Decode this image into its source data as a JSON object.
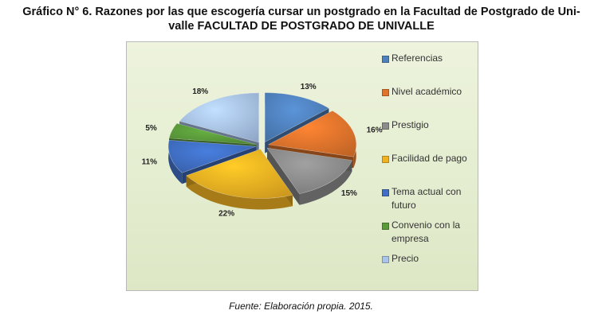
{
  "figure": {
    "title_line1": "Gráfico N° 6. Razones por las que escogería cursar un postgrado en la Facultad de Postgrado de Uni-",
    "title_line2": "valle FACULTAD DE POSTGRADO DE UNIVALLE",
    "source": "Fuente: Elaboración propia. 2015."
  },
  "chart_data": {
    "type": "pie",
    "title": "",
    "labels": [
      "Referencias",
      "Nivel académico",
      "Prestigio",
      "Facilidad de pago",
      "Tema actual con futuro",
      "Convenio con la empresa",
      "Precio"
    ],
    "legend_lines": [
      [
        "Referencias"
      ],
      [
        "Nivel académico"
      ],
      [
        "Prestigio"
      ],
      [
        "Facilidad de pago"
      ],
      [
        "Tema actual con",
        "futuro"
      ],
      [
        "Convenio con la",
        "empresa"
      ],
      [
        "Precio"
      ]
    ],
    "values": [
      13,
      16,
      15,
      22,
      11,
      5,
      18
    ],
    "value_labels": [
      "13%",
      "16%",
      "15%",
      "22%",
      "11%",
      "5%",
      "18%"
    ],
    "colors": [
      "#4f81bd",
      "#e0742c",
      "#8c8c8c",
      "#efb122",
      "#3f6ec2",
      "#5a9a3a",
      "#a9c3ea"
    ],
    "legend_position": "right",
    "style": "3d-exploded"
  }
}
